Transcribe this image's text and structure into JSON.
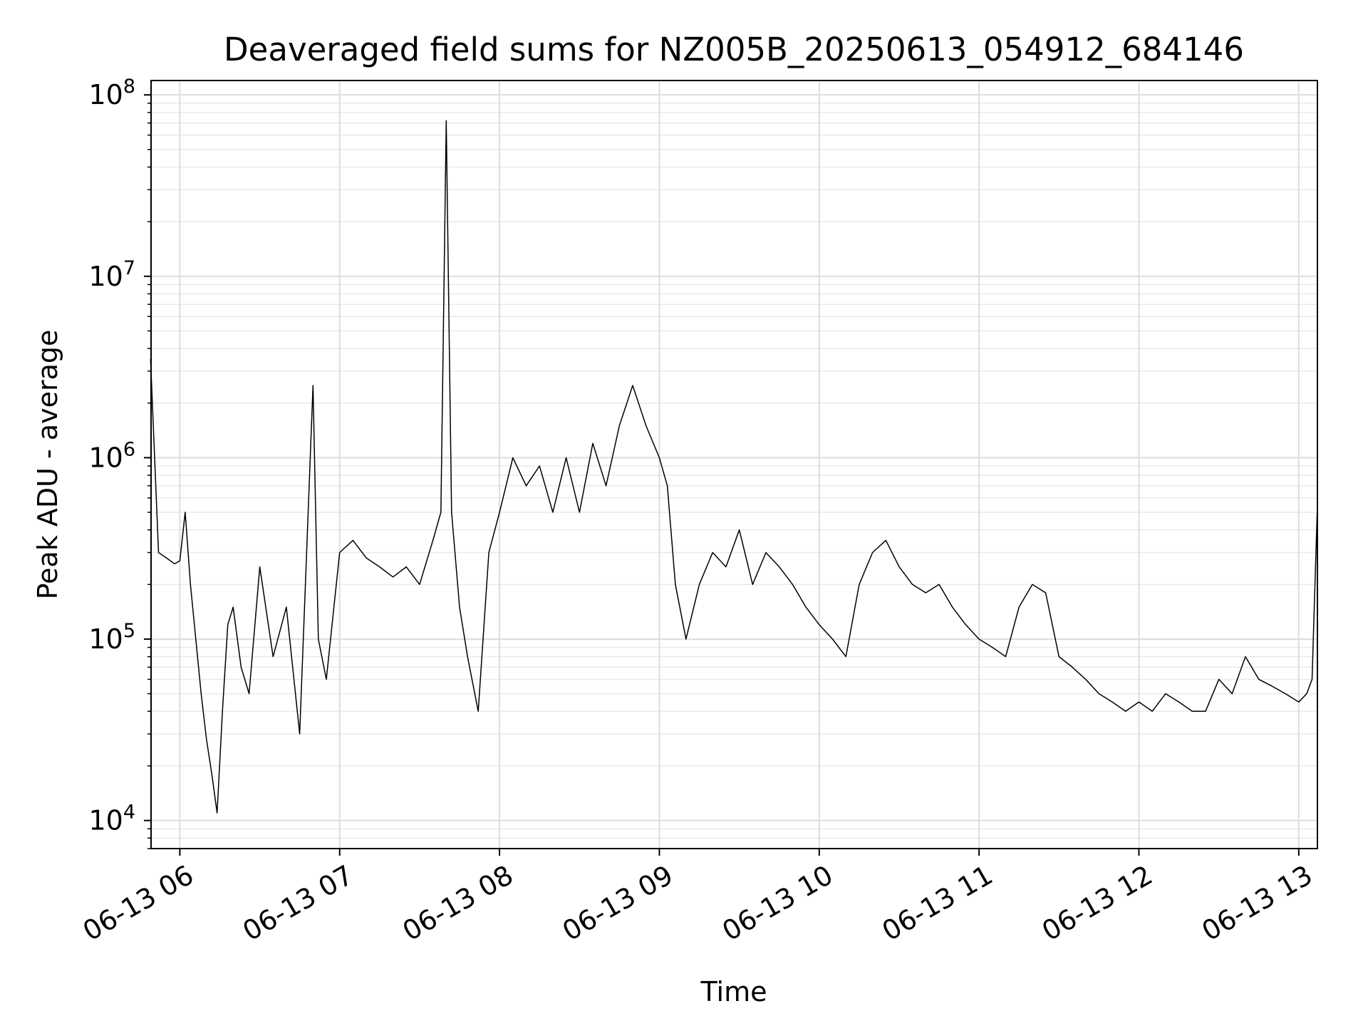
{
  "chart_data": {
    "type": "line",
    "title": "Deaveraged field sums for NZ005B_20250613_054912_684146",
    "xlabel": "Time",
    "ylabel": "Peak ADU - average",
    "yscale": "log",
    "ylim": [
      7000,
      120000000
    ],
    "xlim": [
      "2025-06-13T05:49:12",
      "2025-06-13T13:07:00"
    ],
    "grid": true,
    "x_ticks": [
      {
        "t": "2025-06-13T06:00",
        "label": "06-13 06"
      },
      {
        "t": "2025-06-13T07:00",
        "label": "06-13 07"
      },
      {
        "t": "2025-06-13T08:00",
        "label": "06-13 08"
      },
      {
        "t": "2025-06-13T09:00",
        "label": "06-13 09"
      },
      {
        "t": "2025-06-13T10:00",
        "label": "06-13 10"
      },
      {
        "t": "2025-06-13T11:00",
        "label": "06-13 11"
      },
      {
        "t": "2025-06-13T12:00",
        "label": "06-13 12"
      },
      {
        "t": "2025-06-13T13:00",
        "label": "06-13 13"
      }
    ],
    "y_ticks": [
      {
        "value": 10000,
        "base": "10",
        "exp": "4"
      },
      {
        "value": 100000,
        "base": "10",
        "exp": "5"
      },
      {
        "value": 1000000,
        "base": "10",
        "exp": "6"
      },
      {
        "value": 10000000,
        "base": "10",
        "exp": "7"
      },
      {
        "value": 100000000,
        "base": "10",
        "exp": "8"
      }
    ],
    "series": [
      {
        "color": "#000000",
        "x": [
          "2025-06-13T05:49",
          "2025-06-13T05:52",
          "2025-06-13T05:55",
          "2025-06-13T05:58",
          "2025-06-13T06:00",
          "2025-06-13T06:02",
          "2025-06-13T06:04",
          "2025-06-13T06:06",
          "2025-06-13T06:08",
          "2025-06-13T06:10",
          "2025-06-13T06:12",
          "2025-06-13T06:14",
          "2025-06-13T06:16",
          "2025-06-13T06:18",
          "2025-06-13T06:20",
          "2025-06-13T06:23",
          "2025-06-13T06:26",
          "2025-06-13T06:30",
          "2025-06-13T06:35",
          "2025-06-13T06:40",
          "2025-06-13T06:45",
          "2025-06-13T06:50",
          "2025-06-13T06:52",
          "2025-06-13T06:55",
          "2025-06-13T07:00",
          "2025-06-13T07:05",
          "2025-06-13T07:10",
          "2025-06-13T07:15",
          "2025-06-13T07:20",
          "2025-06-13T07:25",
          "2025-06-13T07:30",
          "2025-06-13T07:35",
          "2025-06-13T07:38",
          "2025-06-13T07:40",
          "2025-06-13T07:42",
          "2025-06-13T07:45",
          "2025-06-13T07:48",
          "2025-06-13T07:52",
          "2025-06-13T07:56",
          "2025-06-13T08:00",
          "2025-06-13T08:05",
          "2025-06-13T08:10",
          "2025-06-13T08:15",
          "2025-06-13T08:20",
          "2025-06-13T08:25",
          "2025-06-13T08:30",
          "2025-06-13T08:35",
          "2025-06-13T08:40",
          "2025-06-13T08:45",
          "2025-06-13T08:50",
          "2025-06-13T08:55",
          "2025-06-13T09:00",
          "2025-06-13T09:03",
          "2025-06-13T09:06",
          "2025-06-13T09:10",
          "2025-06-13T09:15",
          "2025-06-13T09:20",
          "2025-06-13T09:25",
          "2025-06-13T09:30",
          "2025-06-13T09:35",
          "2025-06-13T09:40",
          "2025-06-13T09:45",
          "2025-06-13T09:50",
          "2025-06-13T09:55",
          "2025-06-13T10:00",
          "2025-06-13T10:05",
          "2025-06-13T10:10",
          "2025-06-13T10:15",
          "2025-06-13T10:20",
          "2025-06-13T10:25",
          "2025-06-13T10:30",
          "2025-06-13T10:35",
          "2025-06-13T10:40",
          "2025-06-13T10:45",
          "2025-06-13T10:50",
          "2025-06-13T10:55",
          "2025-06-13T11:00",
          "2025-06-13T11:05",
          "2025-06-13T11:10",
          "2025-06-13T11:15",
          "2025-06-13T11:20",
          "2025-06-13T11:25",
          "2025-06-13T11:30",
          "2025-06-13T11:35",
          "2025-06-13T11:40",
          "2025-06-13T11:45",
          "2025-06-13T11:50",
          "2025-06-13T11:55",
          "2025-06-13T12:00",
          "2025-06-13T12:05",
          "2025-06-13T12:10",
          "2025-06-13T12:15",
          "2025-06-13T12:20",
          "2025-06-13T12:25",
          "2025-06-13T12:30",
          "2025-06-13T12:35",
          "2025-06-13T12:40",
          "2025-06-13T12:45",
          "2025-06-13T12:50",
          "2025-06-13T12:55",
          "2025-06-13T13:00",
          "2025-06-13T13:03",
          "2025-06-13T13:05",
          "2025-06-13T13:07"
        ],
        "y": [
          3500000,
          300000,
          280000,
          260000,
          270000,
          500000,
          200000,
          100000,
          50000,
          28000,
          18000,
          11000,
          40000,
          120000,
          150000,
          70000,
          50000,
          250000,
          80000,
          150000,
          30000,
          2500000,
          100000,
          60000,
          300000,
          350000,
          280000,
          250000,
          220000,
          250000,
          200000,
          350000,
          500000,
          72000000,
          500000,
          150000,
          80000,
          40000,
          300000,
          500000,
          1000000,
          700000,
          900000,
          500000,
          1000000,
          500000,
          1200000,
          700000,
          1500000,
          2500000,
          1500000,
          1000000,
          700000,
          200000,
          100000,
          200000,
          300000,
          250000,
          400000,
          200000,
          300000,
          250000,
          200000,
          150000,
          120000,
          100000,
          80000,
          200000,
          300000,
          350000,
          250000,
          200000,
          180000,
          200000,
          150000,
          120000,
          100000,
          90000,
          80000,
          150000,
          200000,
          180000,
          80000,
          70000,
          60000,
          50000,
          45000,
          40000,
          45000,
          40000,
          50000,
          45000,
          40000,
          40000,
          60000,
          50000,
          80000,
          60000,
          55000,
          50000,
          45000,
          50000,
          60000,
          550000
        ]
      }
    ]
  }
}
